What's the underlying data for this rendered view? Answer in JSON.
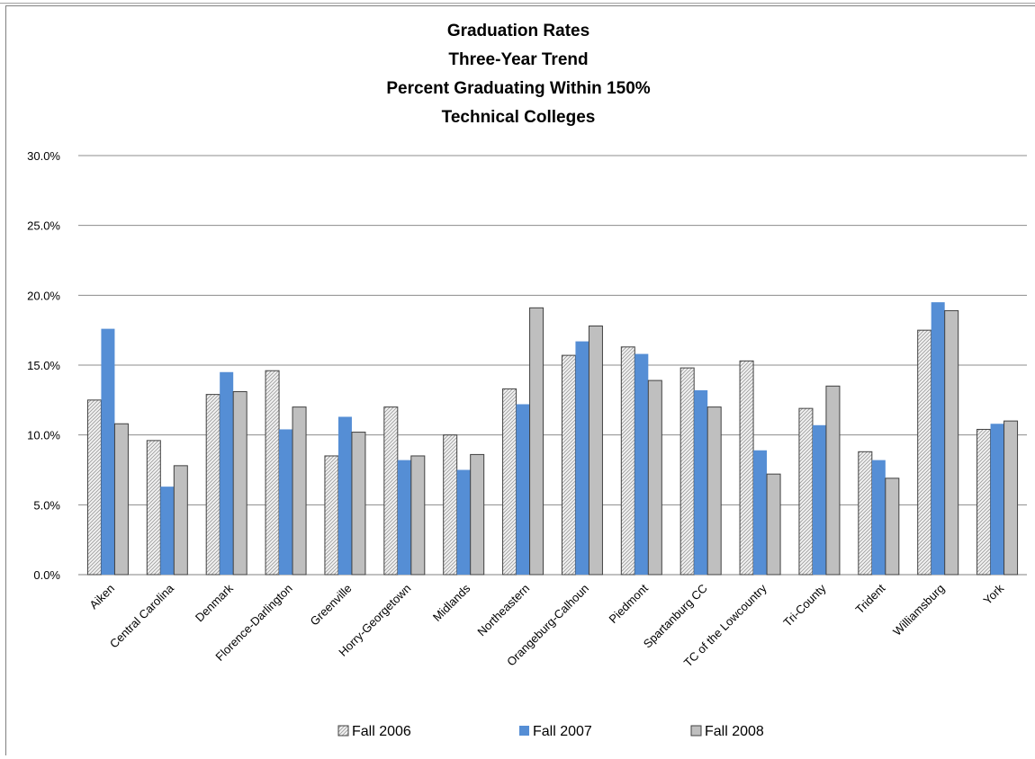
{
  "chart_data": {
    "type": "bar",
    "title_lines": [
      "Graduation Rates",
      "Three-Year Trend",
      "Percent Graduating  Within 150%",
      "Technical Colleges"
    ],
    "categories": [
      "Aiken",
      "Central Carolina",
      "Denmark",
      "Florence-Darlington",
      "Greenville",
      "Horry-Georgetown",
      "Midlands",
      "Northeastern",
      "Orangeburg-Calhoun",
      "Piedmont",
      "Spartanburg CC",
      "TC of the Lowcountry",
      "Tri-County",
      "Trident",
      "Williamsburg",
      "York"
    ],
    "series": [
      {
        "name": "Fall 2006",
        "color": "#e6e6e6",
        "pattern": "diagonal-hatch",
        "values": [
          12.5,
          9.6,
          12.9,
          14.6,
          8.5,
          12.0,
          10.0,
          13.3,
          15.7,
          16.3,
          14.8,
          15.3,
          11.9,
          8.8,
          17.5,
          10.4
        ]
      },
      {
        "name": "Fall 2007",
        "color": "#558ed5",
        "pattern": "solid",
        "values": [
          17.6,
          6.3,
          14.5,
          10.4,
          11.3,
          8.2,
          7.5,
          12.2,
          16.7,
          15.8,
          13.2,
          8.9,
          10.7,
          8.2,
          19.5,
          10.8
        ]
      },
      {
        "name": "Fall 2008",
        "color": "#bfbfbf",
        "pattern": "solid",
        "values": [
          10.8,
          7.8,
          13.1,
          12.0,
          10.2,
          8.5,
          8.6,
          19.1,
          17.8,
          13.9,
          12.0,
          7.2,
          13.5,
          6.9,
          18.9,
          11.0
        ]
      }
    ],
    "ylim": [
      0,
      30
    ],
    "yticks": [
      "0.0%",
      "5.0%",
      "10.0%",
      "15.0%",
      "20.0%",
      "25.0%",
      "30.0%"
    ],
    "ytick_values": [
      0,
      5,
      10,
      15,
      20,
      25,
      30
    ],
    "grid": true,
    "legend_position": "bottom"
  }
}
